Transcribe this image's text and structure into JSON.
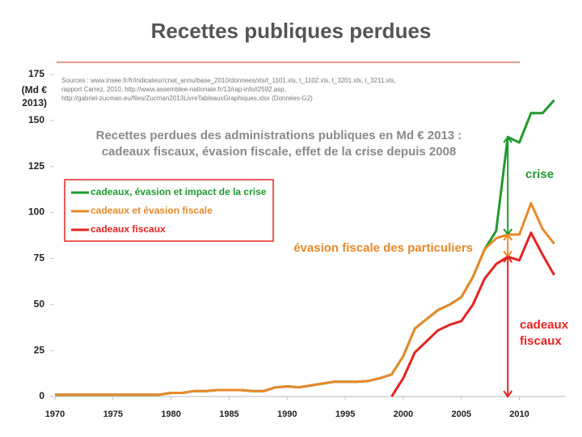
{
  "chart_data": {
    "type": "line",
    "title": "Recettes publiques perdues",
    "sources": [
      "Sources : www.insee.fr/fr/indicateur/cnat_annu/base_2010/donnees/xls/t_1101.xls, t_1102.xls, t_3201.xls, t_3211.xls,",
      "rapport Carrez, 2010, http://www.assemblee-nationale.fr/13/rap-info/i2592.asp,",
      "http://gabriel-zucman.eu/files/Zucman2013LivreTableauxGraphiques.xlsx (Données-G2)"
    ],
    "subtitle": [
      "Recettes perdues des administrations publiques en Md € 2013 :",
      "cadeaux fiscaux, évasion fiscale, effet de la crise depuis 2008"
    ],
    "y_label": [
      "(Md €",
      "2013)"
    ],
    "x": [
      1970,
      1971,
      1972,
      1973,
      1974,
      1975,
      1976,
      1977,
      1978,
      1979,
      1980,
      1981,
      1982,
      1983,
      1984,
      1985,
      1986,
      1987,
      1988,
      1989,
      1990,
      1991,
      1992,
      1993,
      1994,
      1995,
      1996,
      1997,
      1998,
      1999,
      2000,
      2001,
      2002,
      2003,
      2004,
      2005,
      2006,
      2007,
      2008,
      2009,
      2010,
      2011,
      2012,
      2013
    ],
    "series": [
      {
        "name": "cadeaux, évasion et impact de la crise",
        "color": "#1f9a2f",
        "values": [
          1,
          1,
          1,
          1,
          1,
          1,
          1,
          1,
          1,
          1,
          2,
          2,
          3,
          3,
          3.5,
          3.5,
          3.5,
          3,
          3,
          5,
          5.5,
          5,
          6,
          7,
          8,
          8,
          8,
          8.5,
          10,
          12,
          22,
          37,
          42,
          47,
          50,
          54,
          65,
          80,
          90,
          141,
          138,
          154,
          154,
          161
        ]
      },
      {
        "name": "cadeaux et évasion fiscale",
        "color": "#e8892a",
        "values": [
          1,
          1,
          1,
          1,
          1,
          1,
          1,
          1,
          1,
          1,
          2,
          2,
          3,
          3,
          3.5,
          3.5,
          3.5,
          3,
          3,
          5,
          5.5,
          5,
          6,
          7,
          8,
          8,
          8,
          8.5,
          10,
          12,
          22,
          37,
          42,
          47,
          50,
          54,
          65,
          80,
          86,
          88,
          88,
          105,
          91,
          83
        ]
      },
      {
        "name": "cadeaux fiscaux",
        "color": "#e52420",
        "values": [
          null,
          null,
          null,
          null,
          null,
          null,
          null,
          null,
          null,
          null,
          null,
          null,
          null,
          null,
          null,
          null,
          null,
          null,
          null,
          null,
          null,
          null,
          null,
          null,
          null,
          null,
          null,
          null,
          null,
          0,
          10,
          24,
          30,
          36,
          39,
          41,
          50,
          64,
          72,
          76,
          74,
          89,
          77,
          66
        ]
      }
    ],
    "annotations": [
      {
        "lines": [
          "crise"
        ],
        "color": "#1f9a2f"
      },
      {
        "lines": [
          "évasion fiscale des particuliers"
        ],
        "color": "#e8892a"
      },
      {
        "lines": [
          "cadeaux",
          "fiscaux"
        ],
        "color": "#e52420"
      }
    ],
    "xlim": [
      1970,
      2014
    ],
    "ylim": [
      0,
      175
    ],
    "xticks": [
      1970,
      1975,
      1980,
      1985,
      1990,
      1995,
      2000,
      2005,
      2010
    ],
    "yticks": [
      0,
      25,
      50,
      75,
      100,
      125,
      150,
      175
    ],
    "grid": false
  }
}
